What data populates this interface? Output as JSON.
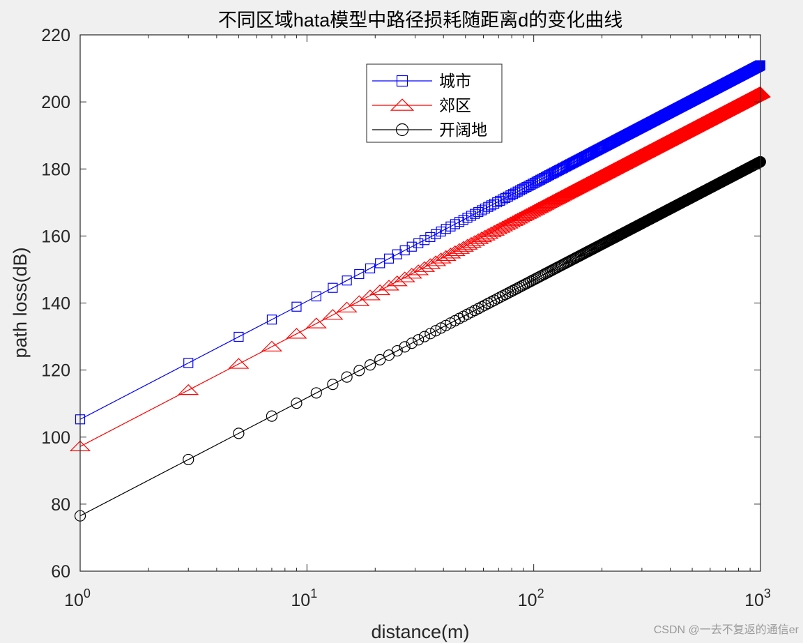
{
  "chart_data": {
    "type": "line",
    "title": "不同区域hata模型中路径损耗随距离d的变化曲线",
    "xlabel": "distance(m)",
    "ylabel": "path loss(dB)",
    "xscale": "log",
    "xlim": [
      1,
      1000
    ],
    "ylim": [
      60,
      220
    ],
    "yticks": [
      60,
      80,
      100,
      120,
      140,
      160,
      180,
      200,
      220
    ],
    "xticks": [
      {
        "base": "10",
        "exp": "0",
        "value": 1
      },
      {
        "base": "10",
        "exp": "1",
        "value": 10
      },
      {
        "base": "10",
        "exp": "2",
        "value": 100
      },
      {
        "base": "10",
        "exp": "3",
        "value": 1000
      }
    ],
    "x": {
      "start": 1,
      "end": 999,
      "step": 2
    },
    "legend_position": "top-center",
    "series": [
      {
        "name": "城市",
        "marker": "square",
        "color": "#0000ff",
        "y_at_1": 105.3,
        "slope_per_decade": 35.22
      },
      {
        "name": "郊区",
        "marker": "triangle",
        "color": "#ff0000",
        "y_at_1": 97.2,
        "slope_per_decade": 35.22
      },
      {
        "name": "开阔地",
        "marker": "circle",
        "color": "#000000",
        "y_at_1": 76.5,
        "slope_per_decade": 35.22
      }
    ]
  },
  "watermark": "CSDN @一去不复返的通信er"
}
